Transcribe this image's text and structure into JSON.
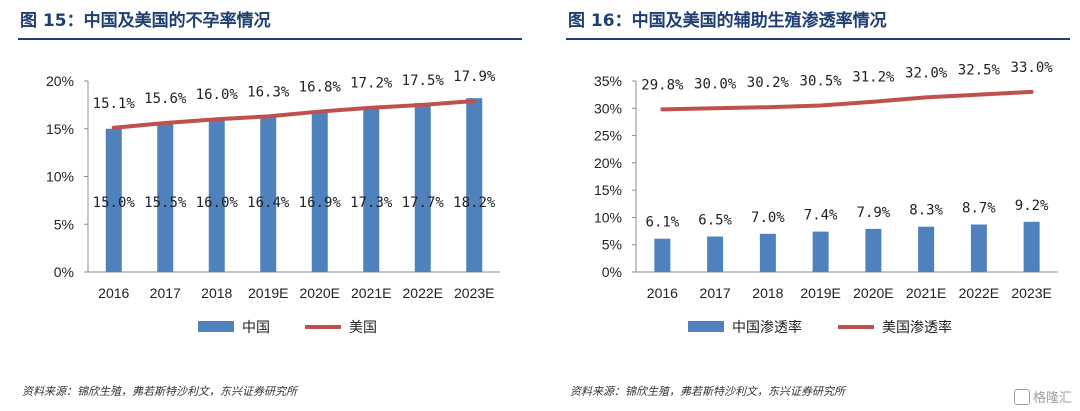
{
  "chart_data": [
    {
      "type": "bar",
      "title": "图 15：中国及美国的不孕率情况",
      "categories": [
        "2016",
        "2017",
        "2018",
        "2019E",
        "2020E",
        "2021E",
        "2022E",
        "2023E"
      ],
      "ylim": [
        0,
        20
      ],
      "yticks": [
        "0%",
        "5%",
        "10%",
        "15%",
        "20%"
      ],
      "series": [
        {
          "name": "中国",
          "kind": "bar",
          "color": "#4f81bd",
          "values": [
            15.0,
            15.5,
            16.0,
            16.4,
            16.9,
            17.3,
            17.7,
            18.2
          ],
          "labels": [
            "15.0%",
            "15.5%",
            "16.0%",
            "16.4%",
            "16.9%",
            "17.3%",
            "17.7%",
            "18.2%"
          ]
        },
        {
          "name": "美国",
          "kind": "line",
          "color": "#c0504d",
          "values": [
            15.1,
            15.6,
            16.0,
            16.3,
            16.8,
            17.2,
            17.5,
            17.9
          ],
          "labels": [
            "15.1%",
            "15.6%",
            "16.0%",
            "16.3%",
            "16.8%",
            "17.2%",
            "17.5%",
            "17.9%"
          ]
        }
      ],
      "source": "资料来源：锦欣生殖，弗若斯特沙利文，东兴证券研究所"
    },
    {
      "type": "bar",
      "title": "图 16：中国及美国的辅助生殖渗透率情况",
      "categories": [
        "2016",
        "2017",
        "2018",
        "2019E",
        "2020E",
        "2021E",
        "2022E",
        "2023E"
      ],
      "ylim": [
        0,
        35
      ],
      "yticks": [
        "0%",
        "5%",
        "10%",
        "15%",
        "20%",
        "25%",
        "30%",
        "35%"
      ],
      "series": [
        {
          "name": "中国渗透率",
          "kind": "bar",
          "color": "#4f81bd",
          "values": [
            6.1,
            6.5,
            7.0,
            7.4,
            7.9,
            8.3,
            8.7,
            9.2
          ],
          "labels": [
            "6.1%",
            "6.5%",
            "7.0%",
            "7.4%",
            "7.9%",
            "8.3%",
            "8.7%",
            "9.2%"
          ]
        },
        {
          "name": "美国渗透率",
          "kind": "line",
          "color": "#c0504d",
          "values": [
            29.8,
            30.0,
            30.2,
            30.5,
            31.2,
            32.0,
            32.5,
            33.0
          ],
          "labels": [
            "29.8%",
            "30.0%",
            "30.2%",
            "30.5%",
            "31.2%",
            "32.0%",
            "32.5%",
            "33.0%"
          ]
        }
      ],
      "source": "资料来源：锦欣生殖，弗若斯特沙利文，东兴证券研究所"
    }
  ],
  "watermark": "格隆汇"
}
